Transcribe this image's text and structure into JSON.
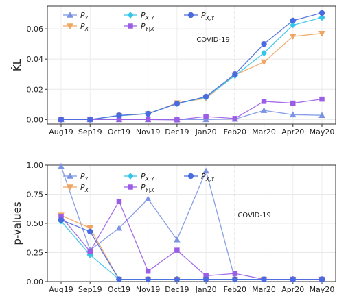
{
  "chart_data": [
    {
      "type": "line",
      "title": "",
      "xlabel": "",
      "ylabel": "K̂L",
      "ylim": [
        -0.003,
        0.075
      ],
      "yticks": [
        0.0,
        0.02,
        0.04,
        0.06
      ],
      "ytick_labels": [
        "0.00",
        "0.02",
        "0.04",
        "0.06"
      ],
      "categories": [
        "Aug19",
        "Sep19",
        "Oct19",
        "Nov19",
        "Dec19",
        "Jan20",
        "Feb20",
        "Mar20",
        "Apr20",
        "May20"
      ],
      "grid": true,
      "legend": "top-left",
      "vline": {
        "at": "Feb20",
        "label": "COVID-19"
      },
      "series": [
        {
          "name": "P_Y",
          "color": "#7b93e3",
          "marker": "triangle-up",
          "values": [
            0.0,
            0.0,
            0.0,
            0.0,
            0.0,
            0.0,
            0.0003,
            0.006,
            0.0032,
            0.0028
          ]
        },
        {
          "name": "P_X",
          "color": "#f0a561",
          "marker": "triangle-down",
          "values": [
            0.0,
            0.0,
            0.0025,
            0.0038,
            0.011,
            0.014,
            0.0295,
            0.038,
            0.055,
            0.057
          ]
        },
        {
          "name": "P_X|Y",
          "color": "#36c5e8",
          "marker": "diamond",
          "values": [
            0.0,
            0.0,
            0.0025,
            0.004,
            0.0105,
            0.0148,
            0.029,
            0.044,
            0.0625,
            0.0675
          ]
        },
        {
          "name": "P_Y|X",
          "color": "#9b5de5",
          "marker": "square",
          "values": [
            0.0,
            0.0,
            0.0,
            0.0,
            -0.0002,
            0.002,
            0.0007,
            0.012,
            0.0108,
            0.0135
          ]
        },
        {
          "name": "P_X,Y",
          "color": "#4a6be0",
          "marker": "circle",
          "values": [
            0.0,
            0.0,
            0.0028,
            0.0038,
            0.0105,
            0.0152,
            0.03,
            0.05,
            0.0655,
            0.0705
          ]
        }
      ]
    },
    {
      "type": "line",
      "title": "",
      "xlabel": "",
      "ylabel": "p-values",
      "ylim": [
        0.0,
        1.0
      ],
      "yticks": [
        0.0,
        0.25,
        0.5,
        0.75,
        1.0
      ],
      "ytick_labels": [
        "0.00",
        "0.25",
        "0.50",
        "0.75",
        "1.00"
      ],
      "categories": [
        "Aug19",
        "Sep19",
        "Oct19",
        "Nov19",
        "Dec19",
        "Jan20",
        "Feb20",
        "Mar20",
        "Apr20",
        "May20"
      ],
      "grid": true,
      "legend": "top-left",
      "vline": {
        "at": "Feb20",
        "label": "COVID-19"
      },
      "series": [
        {
          "name": "P_Y",
          "color": "#7b93e3",
          "marker": "triangle-up",
          "values": [
            0.99,
            0.27,
            0.46,
            0.71,
            0.36,
            0.95,
            0.02,
            0.02,
            0.02,
            0.02
          ]
        },
        {
          "name": "P_X",
          "color": "#f0a561",
          "marker": "triangle-down",
          "values": [
            0.57,
            0.46,
            0.02,
            0.02,
            0.02,
            0.02,
            0.02,
            0.02,
            0.02,
            0.02
          ]
        },
        {
          "name": "P_X|Y",
          "color": "#36c5e8",
          "marker": "diamond",
          "values": [
            0.52,
            0.23,
            0.02,
            0.02,
            0.02,
            0.02,
            0.02,
            0.02,
            0.02,
            0.02
          ]
        },
        {
          "name": "P_Y|X",
          "color": "#9b5de5",
          "marker": "square",
          "values": [
            0.56,
            0.26,
            0.69,
            0.09,
            0.27,
            0.05,
            0.07,
            0.02,
            0.02,
            0.02
          ]
        },
        {
          "name": "P_X,Y",
          "color": "#4a6be0",
          "marker": "circle",
          "values": [
            0.53,
            0.43,
            0.02,
            0.02,
            0.02,
            0.02,
            0.02,
            0.02,
            0.02,
            0.02
          ]
        }
      ]
    }
  ]
}
